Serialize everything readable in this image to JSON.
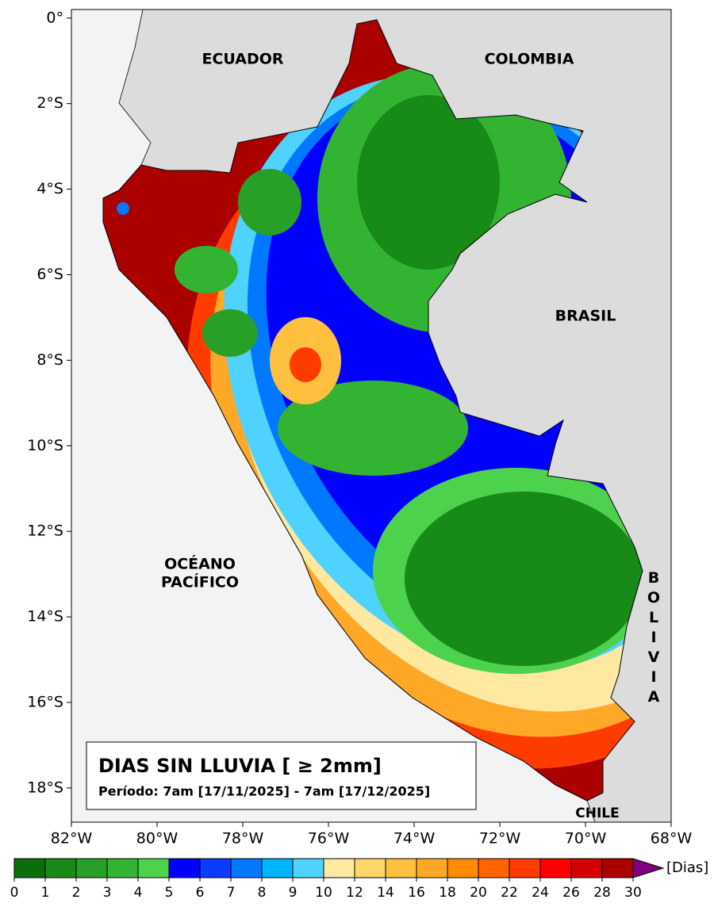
{
  "map": {
    "title": "DIAS SIN LLUVIA [ ≥ 2mm]",
    "period": "Período: 7am [17/11/2025] - 7am [17/12/2025]",
    "labels": {
      "ecuador": "ECUADOR",
      "colombia": "COLOMBIA",
      "brasil": "BRASIL",
      "ocean": [
        "OCÉANO",
        "PACÍFICO"
      ],
      "bolivia": "BOLIVIA",
      "chile": "CHILE"
    },
    "xlim": [
      -82,
      -68
    ],
    "ylim": [
      -18.8,
      0.2
    ],
    "xticks": [
      {
        "value": -82,
        "label": "82°W"
      },
      {
        "value": -80,
        "label": "80°W"
      },
      {
        "value": -78,
        "label": "78°W"
      },
      {
        "value": -76,
        "label": "76°W"
      },
      {
        "value": -74,
        "label": "74°W"
      },
      {
        "value": -72,
        "label": "72°W"
      },
      {
        "value": -70,
        "label": "70°W"
      },
      {
        "value": -68,
        "label": "68°W"
      }
    ],
    "yticks": [
      {
        "value": 0,
        "label": "0°"
      },
      {
        "value": -2,
        "label": "2°S"
      },
      {
        "value": -4,
        "label": "4°S"
      },
      {
        "value": -6,
        "label": "6°S"
      },
      {
        "value": -8,
        "label": "8°S"
      },
      {
        "value": -10,
        "label": "10°S"
      },
      {
        "value": -12,
        "label": "12°S"
      },
      {
        "value": -14,
        "label": "14°S"
      },
      {
        "value": -16,
        "label": "16°S"
      },
      {
        "value": -18,
        "label": "18°S"
      }
    ],
    "colorbar": {
      "boundaries": [
        0,
        1,
        2,
        3,
        4,
        5,
        6,
        7,
        8,
        9,
        10,
        12,
        14,
        16,
        18,
        20,
        22,
        24,
        26,
        28,
        30
      ],
      "colors": [
        "#0a6e0a",
        "#178a17",
        "#28a028",
        "#32b432",
        "#4cd24c",
        "#0000ff",
        "#0a3cff",
        "#0078ff",
        "#00b4ff",
        "#50d2ff",
        "#ffe8a0",
        "#ffd66a",
        "#ffc040",
        "#ffa828",
        "#ff8c00",
        "#ff6400",
        "#ff3c00",
        "#ff0000",
        "#d20000",
        "#aa0000"
      ],
      "extend_color": "#800080",
      "unit": "[Dias]"
    }
  }
}
